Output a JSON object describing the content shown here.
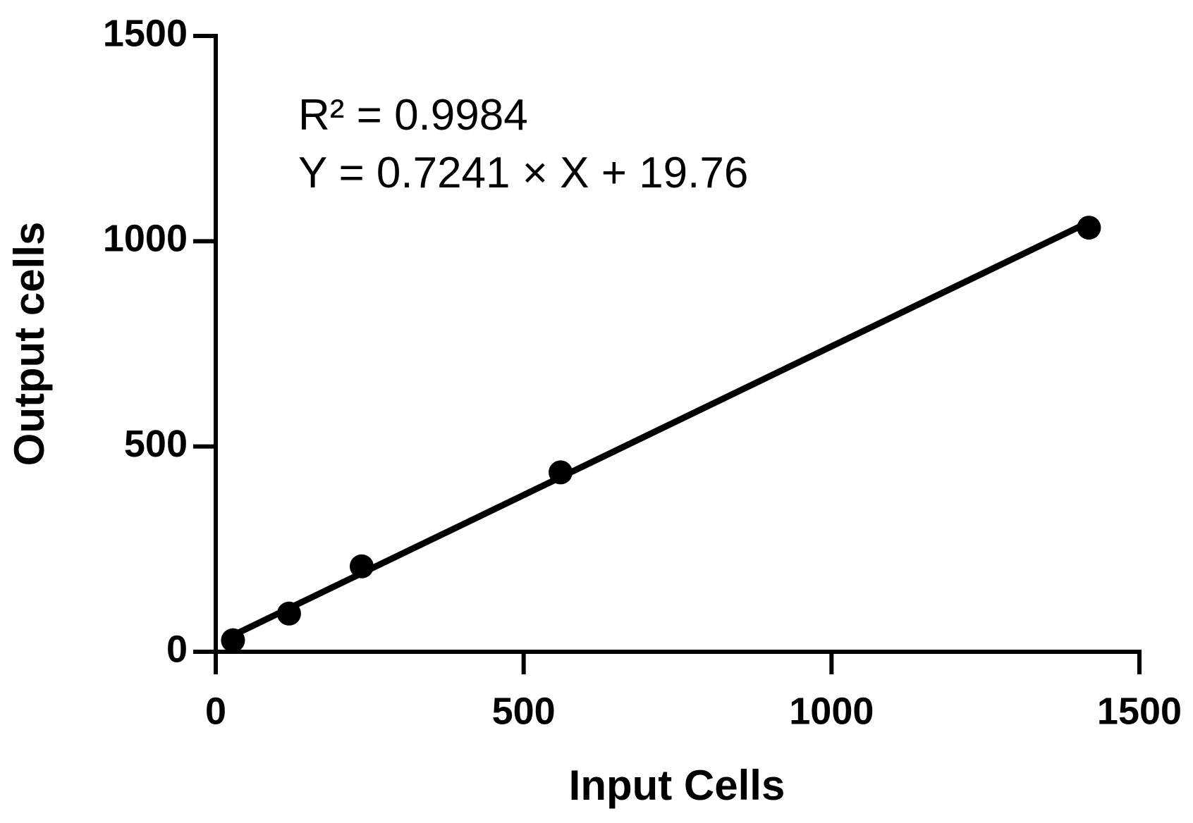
{
  "chart_data": {
    "type": "scatter",
    "x_label": "Input Cells",
    "y_label": "Output cells",
    "annotations": [
      "R² = 0.9984",
      "Y = 0.7241 × X + 19.76"
    ],
    "x": [
      28,
      119,
      237,
      560,
      1418
    ],
    "values": [
      28,
      93,
      208,
      437,
      1033
    ],
    "color": "#000000",
    "fit": {
      "x": [
        28,
        1418
      ],
      "values": [
        40.0,
        1046.5
      ]
    },
    "xlim": [
      0,
      1500
    ],
    "xticks": [
      0,
      500,
      1000,
      1500
    ],
    "ylim": [
      0,
      1500
    ],
    "yticks": [
      0,
      500,
      1000,
      1500
    ]
  }
}
